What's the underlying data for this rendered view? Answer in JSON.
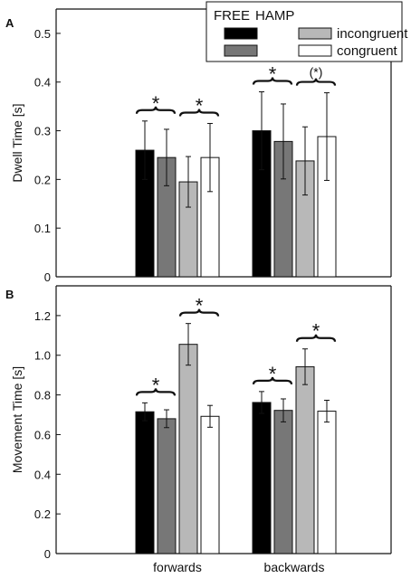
{
  "chart_data": [
    {
      "panel_label": "A",
      "type": "bar",
      "ylabel": "Dwell Time [s]",
      "ylim": [
        0,
        0.55
      ],
      "yticks": [
        "0",
        "0.1",
        "0.2",
        "0.3",
        "0.4",
        "0.5"
      ],
      "categories": [
        "forwards",
        "backwards"
      ],
      "series": [
        {
          "name": "FREE",
          "color": "#000000",
          "values": [
            0.26,
            0.3
          ],
          "errors": [
            0.06,
            0.08
          ]
        },
        {
          "name": "HAMP",
          "color": "#777777",
          "values": [
            0.245,
            0.278
          ],
          "errors": [
            0.058,
            0.077
          ]
        },
        {
          "name": "incongruent",
          "color": "#b8b8b8",
          "values": [
            0.195,
            0.238
          ],
          "errors": [
            0.052,
            0.07
          ]
        },
        {
          "name": "congruent",
          "color": "#ffffff",
          "values": [
            0.245,
            0.288
          ],
          "errors": [
            0.07,
            0.09
          ]
        }
      ],
      "significance": [
        {
          "category": 0,
          "pair": [
            0,
            1
          ],
          "label": "*"
        },
        {
          "category": 0,
          "pair": [
            2,
            3
          ],
          "label": "*"
        },
        {
          "category": 1,
          "pair": [
            0,
            1
          ],
          "label": "*"
        },
        {
          "category": 1,
          "pair": [
            2,
            3
          ],
          "label": "(*)"
        }
      ],
      "legend": {
        "header_free": "FREE",
        "header_hamp": "HAMP",
        "row1": "incongruent",
        "row2": "congruent",
        "placement": "top-right"
      }
    },
    {
      "panel_label": "B",
      "type": "bar",
      "ylabel": "Movement Time [s]",
      "ylim": [
        0,
        1.35
      ],
      "yticks": [
        "0",
        "0.2",
        "0.4",
        "0.6",
        "0.8",
        "1.0",
        "1.2"
      ],
      "categories": [
        "forwards",
        "backwards"
      ],
      "series": [
        {
          "name": "FREE",
          "color": "#000000",
          "values": [
            0.715,
            0.762
          ],
          "errors": [
            0.045,
            0.055
          ]
        },
        {
          "name": "HAMP",
          "color": "#777777",
          "values": [
            0.68,
            0.722
          ],
          "errors": [
            0.045,
            0.058
          ]
        },
        {
          "name": "incongruent",
          "color": "#b8b8b8",
          "values": [
            1.055,
            0.942
          ],
          "errors": [
            0.105,
            0.09
          ]
        },
        {
          "name": "congruent",
          "color": "#ffffff",
          "values": [
            0.692,
            0.718
          ],
          "errors": [
            0.055,
            0.055
          ]
        }
      ],
      "significance": [
        {
          "category": 0,
          "pair": [
            0,
            1
          ],
          "label": "*"
        },
        {
          "category": 0,
          "pair": [
            2,
            3
          ],
          "label": "*"
        },
        {
          "category": 1,
          "pair": [
            0,
            1
          ],
          "label": "*"
        },
        {
          "category": 1,
          "pair": [
            2,
            3
          ],
          "label": "*"
        }
      ]
    }
  ]
}
